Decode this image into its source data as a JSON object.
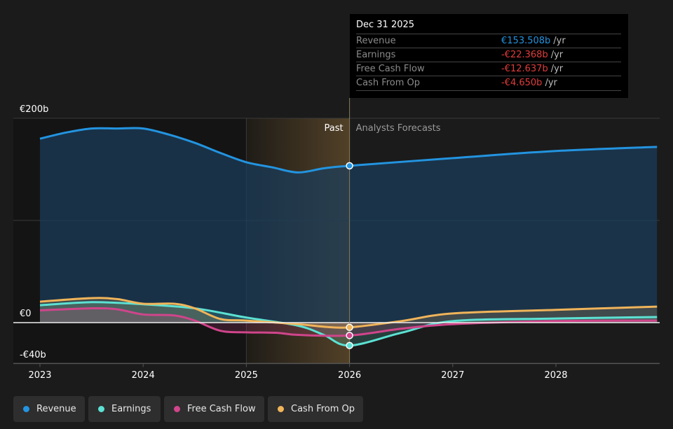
{
  "chart_data": {
    "type": "line",
    "ylabel_ticks": [
      "€200b",
      "€0",
      "-€40b"
    ],
    "y_ticks": [
      200,
      0,
      -40
    ],
    "ylim": [
      -40,
      200
    ],
    "xlim": [
      2022.8,
      2028.98
    ],
    "x_ticks": [
      2023,
      2024,
      2025,
      2026,
      2027,
      2028
    ],
    "x_tick_labels": [
      "2023",
      "2024",
      "2025",
      "2026",
      "2027",
      "2028"
    ],
    "past_label": "Past",
    "forecast_label": "Analysts Forecasts",
    "divider_x": 2026,
    "highlight_range": [
      2025,
      2026
    ],
    "legend_position": "bottom-left",
    "series": [
      {
        "name": "Revenue",
        "color": "#2394e0",
        "x": [
          2023,
          2023.25,
          2023.5,
          2023.75,
          2024,
          2024.25,
          2024.5,
          2024.75,
          2025,
          2025.25,
          2025.5,
          2025.75,
          2026,
          2027,
          2028,
          2028.98
        ],
        "y": [
          180,
          186,
          190,
          190,
          190,
          184,
          176,
          166,
          157,
          152,
          147,
          151,
          153.5,
          161,
          168,
          172
        ]
      },
      {
        "name": "Earnings",
        "color": "#5ce1d3",
        "x": [
          2023,
          2023.5,
          2024,
          2024.5,
          2025,
          2025.5,
          2025.75,
          2026,
          2026.5,
          2027,
          2028,
          2028.98
        ],
        "y": [
          17,
          20,
          18,
          14,
          5,
          -3,
          -12,
          -22.4,
          -10,
          1.5,
          4,
          5.5
        ]
      },
      {
        "name": "Free Cash Flow",
        "color": "#d0458b",
        "x": [
          2023,
          2023.5,
          2023.75,
          2024,
          2024.3,
          2024.5,
          2024.75,
          2025,
          2025.3,
          2025.5,
          2026,
          2026.5,
          2027,
          2028,
          2028.98
        ],
        "y": [
          12,
          14,
          13,
          8,
          7,
          2,
          -8,
          -9.5,
          -10,
          -12,
          -12.6,
          -6,
          -1.5,
          1.5,
          2
        ]
      },
      {
        "name": "Cash From Op",
        "color": "#f0b45a",
        "x": [
          2023,
          2023.5,
          2023.75,
          2024,
          2024.3,
          2024.5,
          2024.75,
          2025,
          2025.5,
          2025.75,
          2026,
          2026.5,
          2027,
          2028,
          2028.98
        ],
        "y": [
          20.5,
          24,
          23,
          18.5,
          18.5,
          14,
          3.5,
          2,
          -1.5,
          -4,
          -4.65,
          1.5,
          9,
          12.5,
          15.7
        ]
      }
    ]
  },
  "tooltip": {
    "date": "Dec 31 2025",
    "rows": [
      {
        "label": "Revenue",
        "value": "€153.508b",
        "unit": "/yr",
        "color": "#2394e0"
      },
      {
        "label": "Earnings",
        "value": "-€22.368b",
        "unit": "/yr",
        "color": "#e23b3b"
      },
      {
        "label": "Free Cash Flow",
        "value": "-€12.637b",
        "unit": "/yr",
        "color": "#e23b3b"
      },
      {
        "label": "Cash From Op",
        "value": "-€4.650b",
        "unit": "/yr",
        "color": "#e23b3b"
      }
    ]
  },
  "legend": [
    {
      "label": "Revenue",
      "color": "#2394e0"
    },
    {
      "label": "Earnings",
      "color": "#5ce1d3"
    },
    {
      "label": "Free Cash Flow",
      "color": "#d0458b"
    },
    {
      "label": "Cash From Op",
      "color": "#f0b45a"
    }
  ]
}
